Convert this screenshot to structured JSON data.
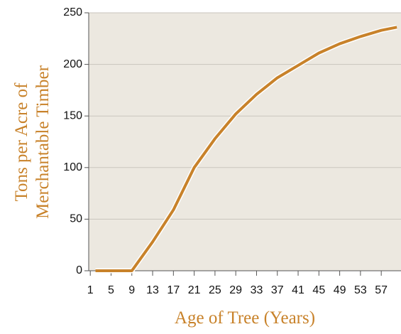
{
  "chart_data": {
    "type": "line",
    "x_label": "Age of Tree (Years)",
    "y_label": [
      "Tons per Acre of",
      "Merchantable Timber"
    ],
    "x": [
      2,
      9,
      13,
      17,
      21,
      25,
      29,
      33,
      37,
      41,
      45,
      49,
      53,
      57,
      60
    ],
    "series": [
      {
        "name": "Tons per Acre",
        "color": "#c8822a",
        "values": [
          0,
          0,
          28,
          59,
          100,
          128,
          152,
          171,
          187,
          199,
          211,
          220,
          227,
          233,
          236
        ]
      }
    ],
    "xlim": [
      0.7,
      60.8
    ],
    "xticks": [
      1,
      5,
      9,
      13,
      17,
      21,
      25,
      29,
      33,
      37,
      41,
      45,
      49,
      53,
      57
    ],
    "ylim": [
      0,
      250
    ],
    "yticks": [
      0,
      50,
      100,
      150,
      200,
      250
    ],
    "grid": true,
    "plot_background": "#ece8e0"
  }
}
